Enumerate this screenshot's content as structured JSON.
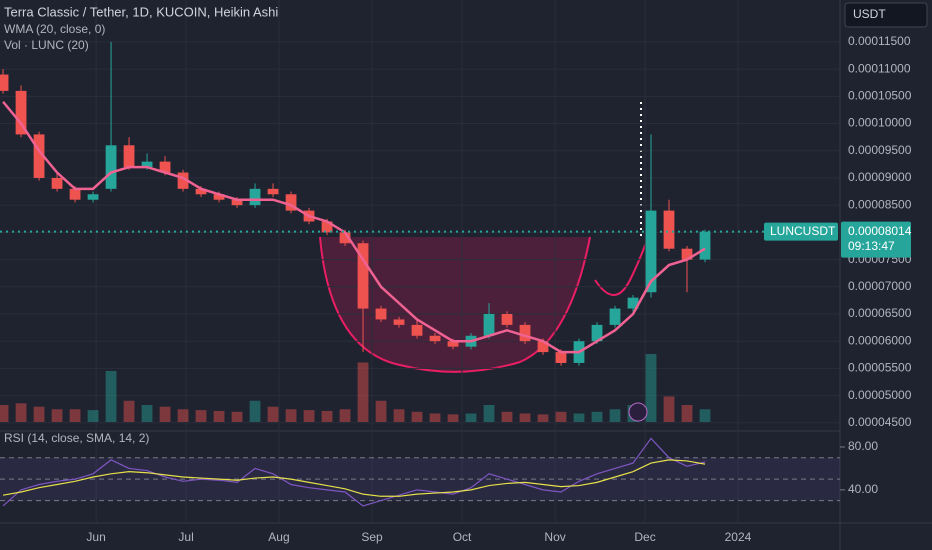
{
  "chart_data": {
    "type": "candlestick",
    "title": "Terra Classic / Tether, 1D, KUCOIN, Heikin Ashi",
    "indicator_labels": [
      "WMA (20, close, 0)",
      "Vol · LUNC (20)"
    ],
    "currency": "USDT",
    "symbol": "LUNCUSDT",
    "last_price": {
      "value": 8.014e-05,
      "label": "0.00008014"
    },
    "countdown": "09:13:47",
    "up_color": "#26a69a",
    "down_color": "#ef5350",
    "open": [
      0.000109,
      0.000106,
      9.8e-05,
      9e-05,
      8.8e-05,
      8.6e-05,
      8.8e-05,
      9.6e-05,
      9.2e-05,
      9.3e-05,
      9.1e-05,
      8.8e-05,
      8.7e-05,
      8.6e-05,
      8.5e-05,
      8.8e-05,
      8.7e-05,
      8.4e-05,
      8.2e-05,
      8e-05,
      7.8e-05,
      6.6e-05,
      6.4e-05,
      6.3e-05,
      6.1e-05,
      6e-05,
      5.9e-05,
      6.1e-05,
      6.5e-05,
      6.3e-05,
      6e-05,
      5.8e-05,
      5.6e-05,
      6e-05,
      6.3e-05,
      6.6e-05,
      6.9e-05,
      8.4e-05,
      7.7e-05,
      7.5e-05
    ],
    "close": [
      0.000106,
      9.8e-05,
      9e-05,
      8.8e-05,
      8.6e-05,
      8.7e-05,
      9.6e-05,
      9.2e-05,
      9.3e-05,
      9.1e-05,
      8.8e-05,
      8.7e-05,
      8.6e-05,
      8.5e-05,
      8.8e-05,
      8.7e-05,
      8.4e-05,
      8.2e-05,
      8e-05,
      7.8e-05,
      6.6e-05,
      6.4e-05,
      6.3e-05,
      6.1e-05,
      6e-05,
      5.9e-05,
      6.1e-05,
      6.5e-05,
      6.3e-05,
      6e-05,
      5.8e-05,
      5.6e-05,
      6e-05,
      6.3e-05,
      6.6e-05,
      6.8e-05,
      8.4e-05,
      7.7e-05,
      7.5e-05,
      8.014e-05
    ],
    "high": [
      0.00011,
      0.000107,
      9.85e-05,
      9.1e-05,
      8.85e-05,
      8.75e-05,
      0.000115,
      9.75e-05,
      9.45e-05,
      9.4e-05,
      9.15e-05,
      8.85e-05,
      8.75e-05,
      8.65e-05,
      8.9e-05,
      8.9e-05,
      8.75e-05,
      8.45e-05,
      8.25e-05,
      8.05e-05,
      7.85e-05,
      6.65e-05,
      6.45e-05,
      6.4e-05,
      6.15e-05,
      6.05e-05,
      6.15e-05,
      6.7e-05,
      6.55e-05,
      6.35e-05,
      6.05e-05,
      5.85e-05,
      6.05e-05,
      6.35e-05,
      6.65e-05,
      6.85e-05,
      9.8e-05,
      8.6e-05,
      7.75e-05,
      8.05e-05
    ],
    "low": [
      0.0001055,
      9.75e-05,
      8.95e-05,
      8.75e-05,
      8.55e-05,
      8.55e-05,
      8.75e-05,
      9.15e-05,
      9.15e-05,
      9.05e-05,
      8.75e-05,
      8.65e-05,
      8.55e-05,
      8.45e-05,
      8.45e-05,
      8.65e-05,
      8.35e-05,
      8.15e-05,
      7.95e-05,
      7.75e-05,
      5.8e-05,
      6.35e-05,
      6.25e-05,
      6.05e-05,
      5.95e-05,
      5.85e-05,
      5.85e-05,
      6.05e-05,
      6.25e-05,
      5.95e-05,
      5.75e-05,
      5.55e-05,
      5.55e-05,
      5.95e-05,
      6.25e-05,
      6.55e-05,
      6.8e-05,
      7.65e-05,
      6.9e-05,
      7.45e-05
    ],
    "wma": {
      "color": "#f06292",
      "values": [
        0.000104,
        0.0001,
        9.5e-05,
        9.1e-05,
        8.8e-05,
        8.8e-05,
        9.1e-05,
        9.2e-05,
        9.2e-05,
        9.1e-05,
        9e-05,
        8.8e-05,
        8.7e-05,
        8.6e-05,
        8.6e-05,
        8.6e-05,
        8.5e-05,
        8.3e-05,
        8.2e-05,
        8e-05,
        7.5e-05,
        7e-05,
        6.7e-05,
        6.4e-05,
        6.2e-05,
        6e-05,
        6e-05,
        6.1e-05,
        6.2e-05,
        6.1e-05,
        6e-05,
        5.8e-05,
        5.8e-05,
        6e-05,
        6.2e-05,
        6.5e-05,
        7.1e-05,
        7.4e-05,
        7.5e-05,
        7.7e-05
      ]
    },
    "volume": [
      20,
      22,
      18,
      15,
      15,
      14,
      60,
      25,
      20,
      18,
      15,
      14,
      13,
      12,
      25,
      18,
      15,
      14,
      13,
      15,
      70,
      25,
      15,
      12,
      10,
      9,
      10,
      20,
      12,
      10,
      9,
      12,
      10,
      12,
      15,
      20,
      80,
      30,
      20,
      15
    ],
    "volume_lim": [
      0,
      100
    ],
    "ylim": [
      4.35e-05,
      0.0001227
    ],
    "yticks": [
      {
        "value": 4.5e-05,
        "label": "0.00004500"
      },
      {
        "value": 5e-05,
        "label": "0.00005000"
      },
      {
        "value": 5.5e-05,
        "label": "0.00005500"
      },
      {
        "value": 6e-05,
        "label": "0.00006000"
      },
      {
        "value": 6.5e-05,
        "label": "0.00006500"
      },
      {
        "value": 7e-05,
        "label": "0.00007000"
      },
      {
        "value": 7.5e-05,
        "label": "0.00007500"
      },
      {
        "value": 8e-05,
        "label": "0.00008000"
      },
      {
        "value": 8.5e-05,
        "label": "0.00008500"
      },
      {
        "value": 9e-05,
        "label": "0.00009000"
      },
      {
        "value": 9.5e-05,
        "label": "0.00009500"
      },
      {
        "value": 0.0001,
        "label": "0.00010000"
      },
      {
        "value": 0.000105,
        "label": "0.00010500"
      },
      {
        "value": 0.00011,
        "label": "0.00011000"
      },
      {
        "value": 0.000115,
        "label": "0.00011500"
      }
    ],
    "xlim": [
      -0.17,
      46.5
    ],
    "xticks": [
      {
        "value": 5.17,
        "label": "Jun"
      },
      {
        "value": 10.17,
        "label": "Jul"
      },
      {
        "value": 15.33,
        "label": "Aug"
      },
      {
        "value": 20.5,
        "label": "Sep"
      },
      {
        "value": 25.5,
        "label": "Oct"
      },
      {
        "value": 30.67,
        "label": "Nov"
      },
      {
        "value": 35.67,
        "label": "Dec"
      },
      {
        "value": 40.83,
        "label": "2024"
      }
    ],
    "rsi": {
      "title": "RSI (14, close, SMA, 14, 2)",
      "color": "#7e57c2",
      "ma_color": "#e6e04a",
      "values": [
        25,
        40,
        45,
        48,
        50,
        55,
        68,
        60,
        58,
        52,
        48,
        50,
        49,
        47,
        60,
        55,
        45,
        42,
        40,
        38,
        25,
        30,
        35,
        40,
        38,
        36,
        42,
        55,
        50,
        45,
        40,
        38,
        48,
        55,
        60,
        65,
        88,
        70,
        62,
        66
      ],
      "ma": [
        35,
        38,
        42,
        45,
        48,
        52,
        55,
        57,
        56,
        54,
        52,
        51,
        50,
        49,
        51,
        52,
        50,
        47,
        44,
        41,
        36,
        34,
        34,
        36,
        37,
        38,
        40,
        44,
        46,
        47,
        45,
        43,
        44,
        47,
        52,
        57,
        65,
        68,
        67,
        64
      ],
      "ylim": [
        10,
        94
      ],
      "bands": [
        30,
        50,
        70
      ],
      "yticks": [
        {
          "value": 80,
          "label": "80.00"
        },
        {
          "value": 40,
          "label": "40.00"
        }
      ]
    }
  }
}
